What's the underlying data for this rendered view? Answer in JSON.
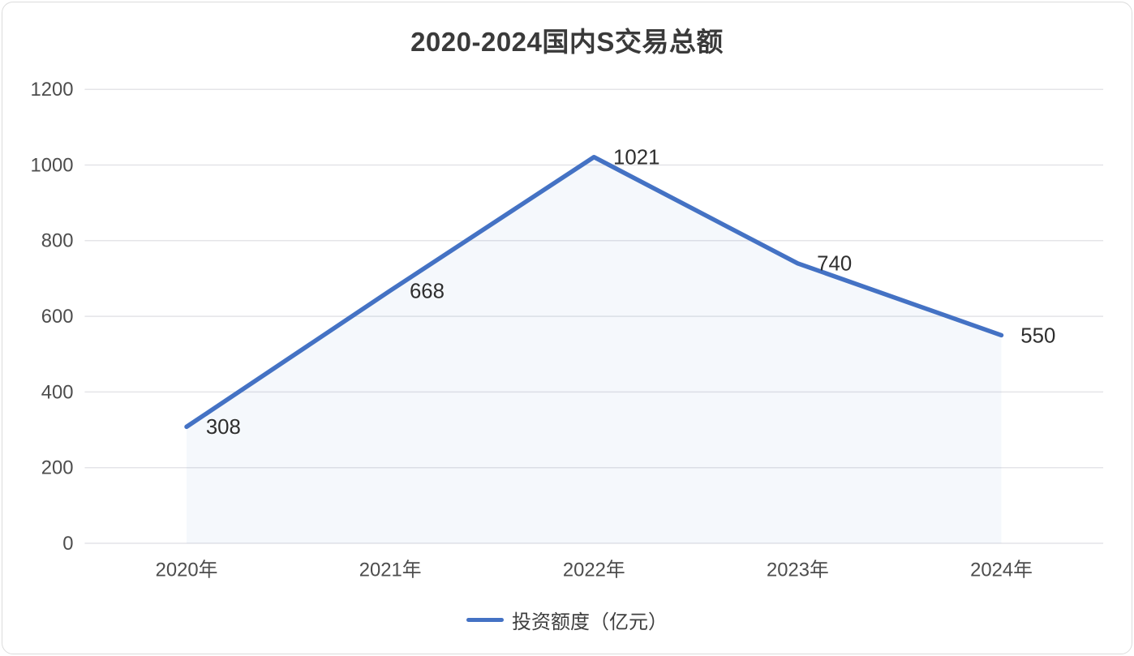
{
  "chart_data": {
    "type": "line",
    "title": "2020-2024国内S交易总额",
    "categories": [
      "2020年",
      "2021年",
      "2022年",
      "2023年",
      "2024年"
    ],
    "series": [
      {
        "name": "投资额度（亿元）",
        "values": [
          308,
          668,
          1021,
          740,
          550
        ]
      }
    ],
    "data_labels": [
      "308",
      "668",
      "1021",
      "740",
      "550"
    ],
    "ylim": [
      0,
      1200
    ],
    "ytick_step": 200,
    "ytick_labels": [
      "0",
      "200",
      "400",
      "600",
      "800",
      "1000",
      "1200"
    ],
    "grid": true,
    "legend_position": "bottom",
    "line_color": "#4472c4",
    "area_fill": "rgba(68,114,196,0.05)",
    "grid_color": "#e4e4e8",
    "axis_text_color": "#4d4d4d",
    "label_color": "#2e2e2e",
    "title_color": "#3a3a3a"
  }
}
